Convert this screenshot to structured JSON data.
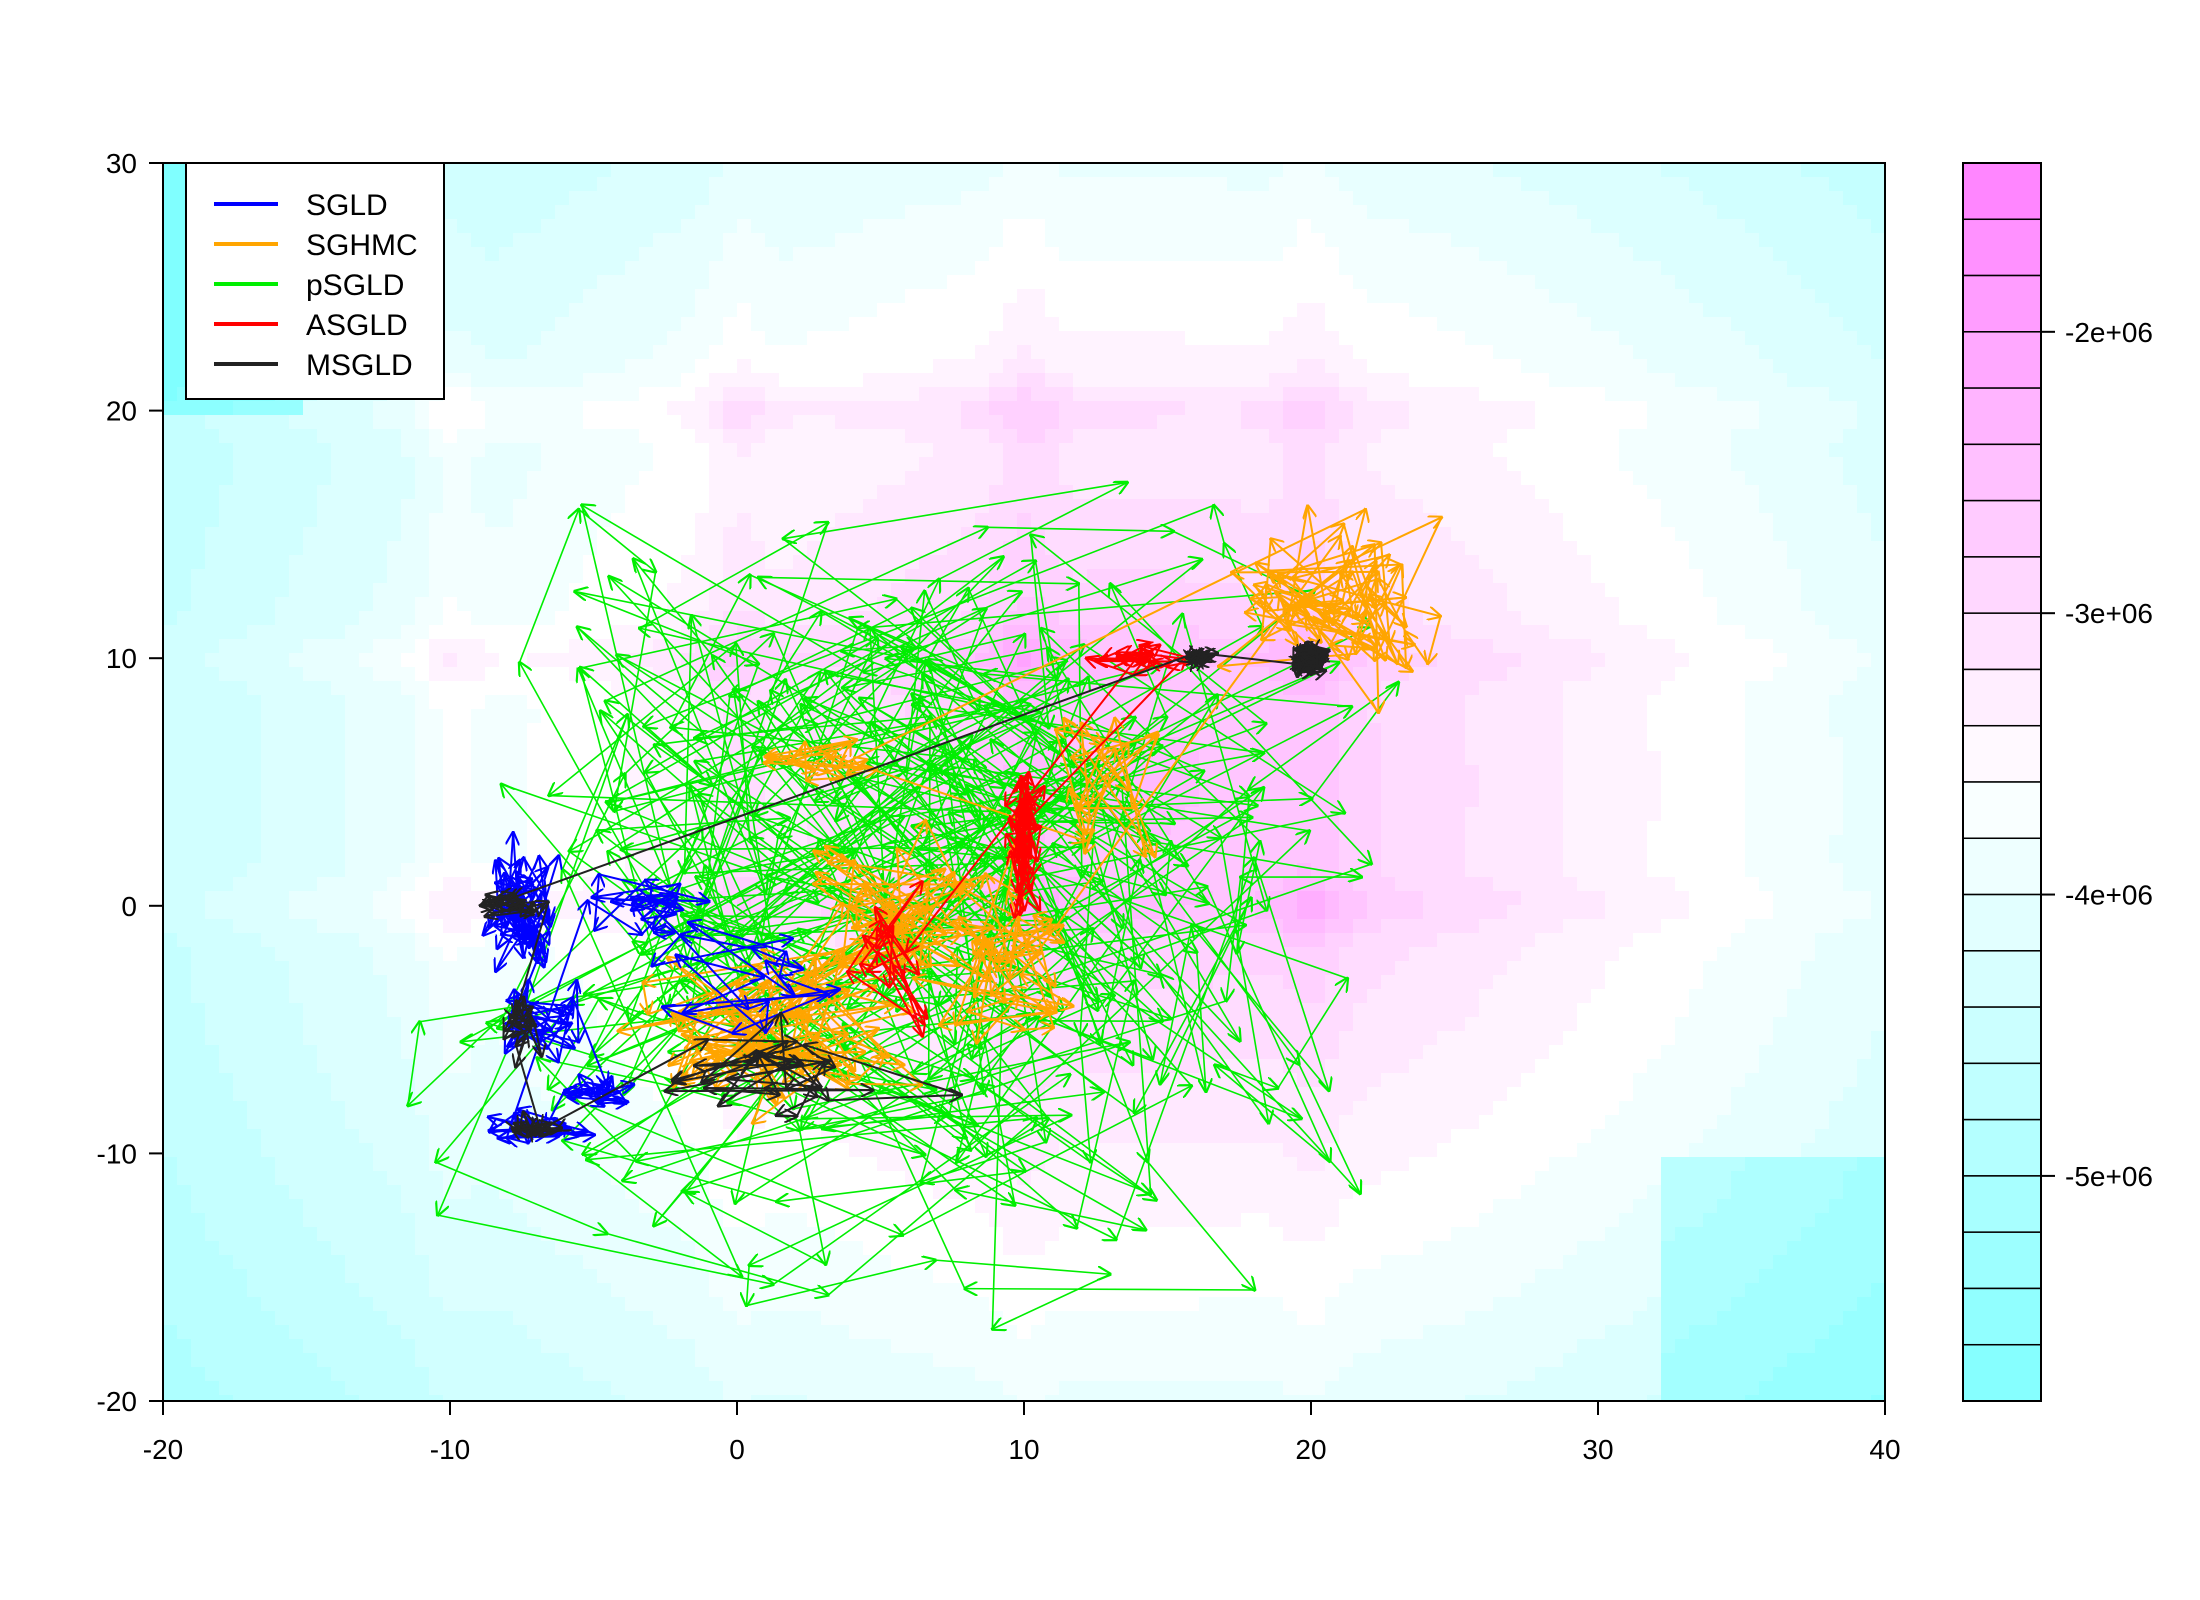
{
  "chart_data": {
    "type": "contour-trajectories",
    "title": "",
    "xlabel": "",
    "ylabel": "",
    "xlim": [
      -20,
      40
    ],
    "ylim": [
      -20,
      30
    ],
    "x_ticks": [
      "-20",
      "-10",
      "0",
      "10",
      "20",
      "30",
      "40"
    ],
    "y_ticks": [
      "-20",
      "-10",
      "0",
      "10",
      "20",
      "30"
    ],
    "grid": false,
    "legend": {
      "position": "top-left",
      "entries": [
        {
          "name": "SGLD",
          "color": "#0000ff"
        },
        {
          "name": "SGHMC",
          "color": "#ffa500"
        },
        {
          "name": "pSGLD",
          "color": "#00ee00"
        },
        {
          "name": "ASGLD",
          "color": "#ff0000"
        },
        {
          "name": "MSGLD",
          "color": "#222222"
        }
      ]
    },
    "contour": {
      "levels_count": 22,
      "colorbar_ticks": [
        "-2e+06",
        "-3e+06",
        "-4e+06",
        "-5e+06"
      ],
      "colorbar_tick_values": [
        -2000000,
        -3000000,
        -4000000,
        -5000000
      ],
      "colorbar_range": [
        -5800000,
        -1400000
      ],
      "low_color": "#80ffff",
      "mid_color": "#ffffff",
      "high_color": "#ff80ff",
      "modes": [
        [
          -10,
          0
        ],
        [
          -10,
          10
        ],
        [
          -10,
          20
        ],
        [
          0,
          0
        ],
        [
          0,
          10
        ],
        [
          0,
          20
        ],
        [
          10,
          0
        ],
        [
          10,
          10
        ],
        [
          10,
          20
        ],
        [
          20,
          0
        ],
        [
          20,
          10
        ],
        [
          20,
          20
        ]
      ]
    },
    "series": [
      {
        "name": "SGLD",
        "color": "#0000ff",
        "clusters": [
          {
            "center": [
              -7.5,
              0
            ],
            "spread": [
              1.2,
              2.2
            ],
            "n": 70
          },
          {
            "center": [
              -7,
              -4.5
            ],
            "spread": [
              1.5,
              1.5
            ],
            "n": 35
          },
          {
            "center": [
              -5,
              -7.5
            ],
            "spread": [
              1.2,
              0.6
            ],
            "n": 25
          },
          {
            "center": [
              -7,
              -9
            ],
            "spread": [
              2.0,
              0.5
            ],
            "n": 30
          },
          {
            "center": [
              -3,
              0
            ],
            "spread": [
              2.0,
              1.5
            ],
            "n": 25
          },
          {
            "center": [
              1,
              -3
            ],
            "spread": [
              3.0,
              2.0
            ],
            "n": 20
          }
        ]
      },
      {
        "name": "SGHMC",
        "color": "#ffa500",
        "clusters": [
          {
            "center": [
              1,
              -5
            ],
            "spread": [
              3.5,
              2.5
            ],
            "n": 110
          },
          {
            "center": [
              5,
              -1
            ],
            "spread": [
              3.0,
              3.0
            ],
            "n": 60
          },
          {
            "center": [
              9,
              -2
            ],
            "spread": [
              2.5,
              3.0
            ],
            "n": 50
          },
          {
            "center": [
              21,
              12
            ],
            "spread": [
              3.0,
              3.0
            ],
            "n": 80
          },
          {
            "center": [
              3,
              6
            ],
            "spread": [
              2.0,
              1.0
            ],
            "n": 20
          },
          {
            "center": [
              13,
              5
            ],
            "spread": [
              2.0,
              2.0
            ],
            "n": 25
          }
        ]
      },
      {
        "name": "pSGLD",
        "color": "#00ee00",
        "n_steps": 420,
        "x_range": [
          -20,
          40
        ],
        "y_range": [
          -20,
          22
        ]
      },
      {
        "name": "ASGLD",
        "color": "#ff0000",
        "clusters": [
          {
            "center": [
              10,
              3
            ],
            "spread": [
              0.4,
              3.0
            ],
            "n": 60
          },
          {
            "center": [
              14,
              10
            ],
            "spread": [
              2.0,
              0.5
            ],
            "n": 25
          },
          {
            "center": [
              5,
              -2
            ],
            "spread": [
              1.5,
              2.5
            ],
            "n": 20
          }
        ]
      },
      {
        "name": "MSGLD",
        "color": "#222222",
        "clusters": [
          {
            "center": [
              20,
              10
            ],
            "spread": [
              0.5,
              0.5
            ],
            "n": 90
          },
          {
            "center": [
              16,
              10
            ],
            "spread": [
              0.5,
              0.3
            ],
            "n": 30
          },
          {
            "center": [
              -8,
              0
            ],
            "spread": [
              1.2,
              0.4
            ],
            "n": 25
          },
          {
            "center": [
              -7.5,
              -5
            ],
            "spread": [
              0.6,
              1.0
            ],
            "n": 20
          },
          {
            "center": [
              -7,
              -9
            ],
            "spread": [
              0.8,
              0.4
            ],
            "n": 20
          },
          {
            "center": [
              1,
              -7
            ],
            "spread": [
              4.0,
              2.0
            ],
            "n": 35
          }
        ]
      }
    ]
  }
}
